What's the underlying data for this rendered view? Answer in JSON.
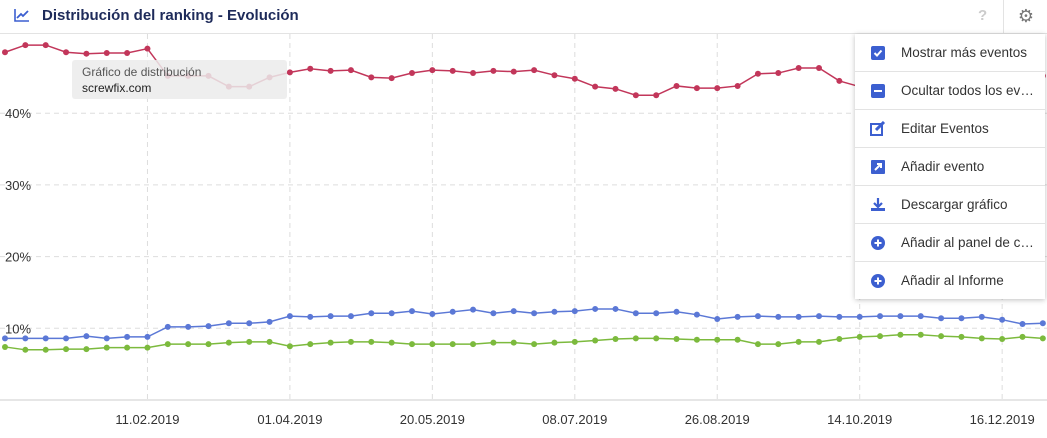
{
  "header": {
    "title": "Distribución del ranking - Evolución",
    "help": "?"
  },
  "tooltip": {
    "title": "Gráfico de distribución",
    "domain": "screwfix.com"
  },
  "menu": [
    {
      "label": "Mostrar más eventos",
      "icon": "checkbox-icon"
    },
    {
      "label": "Ocultar todos los eventos",
      "icon": "minus-square-icon"
    },
    {
      "label": "Editar Eventos",
      "icon": "edit-icon"
    },
    {
      "label": "Añadir evento",
      "icon": "external-link-icon"
    },
    {
      "label": "Descargar gráfico",
      "icon": "download-icon"
    },
    {
      "label": "Añadir al panel de control",
      "icon": "plus-circle-icon"
    },
    {
      "label": "Añadir al Informe",
      "icon": "plus-circle-icon"
    }
  ],
  "colors": {
    "accent": "#3c5fd0",
    "red": "#c2365a",
    "blue": "#5b78d6",
    "green": "#7cba3d"
  },
  "chart_data": {
    "type": "line",
    "ylim": [
      0,
      50
    ],
    "yticks": [
      {
        "v": 10,
        "label": "10%"
      },
      {
        "v": 20,
        "label": "20%"
      },
      {
        "v": 30,
        "label": "30%"
      },
      {
        "v": 40,
        "label": "40%"
      }
    ],
    "xticks": [
      {
        "i": 7,
        "label": "11.02.2019"
      },
      {
        "i": 14,
        "label": "01.04.2019"
      },
      {
        "i": 21,
        "label": "20.05.2019"
      },
      {
        "i": 28,
        "label": "08.07.2019"
      },
      {
        "i": 35,
        "label": "26.08.2019"
      },
      {
        "i": 42,
        "label": "14.10.2019"
      },
      {
        "i": 49,
        "label": "16.12.2019"
      }
    ],
    "series": [
      {
        "name": "red",
        "color": "#c2365a",
        "values": [
          48.5,
          49.5,
          49.5,
          48.5,
          48.3,
          48.4,
          48.4,
          49.0,
          45.2,
          45.2,
          45.2,
          43.7,
          43.7,
          45.0,
          45.7,
          46.2,
          45.9,
          46.0,
          45.0,
          44.9,
          45.6,
          46.0,
          45.9,
          45.6,
          45.9,
          45.8,
          46.0,
          45.3,
          44.8,
          43.7,
          43.4,
          42.5,
          42.5,
          43.8,
          43.5,
          43.5,
          43.8,
          45.5,
          45.6,
          46.3,
          46.3,
          44.5,
          43.7,
          44.0,
          44.5,
          45.0,
          45.2,
          45.0,
          45.3,
          45.5,
          45.0,
          45.2
        ]
      },
      {
        "name": "blue",
        "color": "#5b78d6",
        "values": [
          8.6,
          8.6,
          8.6,
          8.6,
          8.9,
          8.6,
          8.8,
          8.8,
          10.2,
          10.2,
          10.3,
          10.7,
          10.7,
          10.9,
          11.7,
          11.6,
          11.7,
          11.7,
          12.1,
          12.1,
          12.4,
          12.0,
          12.3,
          12.6,
          12.1,
          12.4,
          12.1,
          12.3,
          12.4,
          12.7,
          12.7,
          12.1,
          12.1,
          12.3,
          11.9,
          11.3,
          11.6,
          11.7,
          11.6,
          11.6,
          11.7,
          11.6,
          11.6,
          11.7,
          11.7,
          11.7,
          11.4,
          11.4,
          11.6,
          11.2,
          10.6,
          10.7
        ]
      },
      {
        "name": "green",
        "color": "#7cba3d",
        "values": [
          7.4,
          7.0,
          7.0,
          7.1,
          7.1,
          7.3,
          7.3,
          7.3,
          7.8,
          7.8,
          7.8,
          8.0,
          8.1,
          8.1,
          7.5,
          7.8,
          8.0,
          8.1,
          8.1,
          8.0,
          7.8,
          7.8,
          7.8,
          7.8,
          8.0,
          8.0,
          7.8,
          8.0,
          8.1,
          8.3,
          8.5,
          8.6,
          8.6,
          8.5,
          8.4,
          8.4,
          8.4,
          7.8,
          7.8,
          8.1,
          8.1,
          8.5,
          8.8,
          8.9,
          9.1,
          9.1,
          8.9,
          8.8,
          8.6,
          8.5,
          8.8,
          8.6
        ]
      }
    ]
  }
}
